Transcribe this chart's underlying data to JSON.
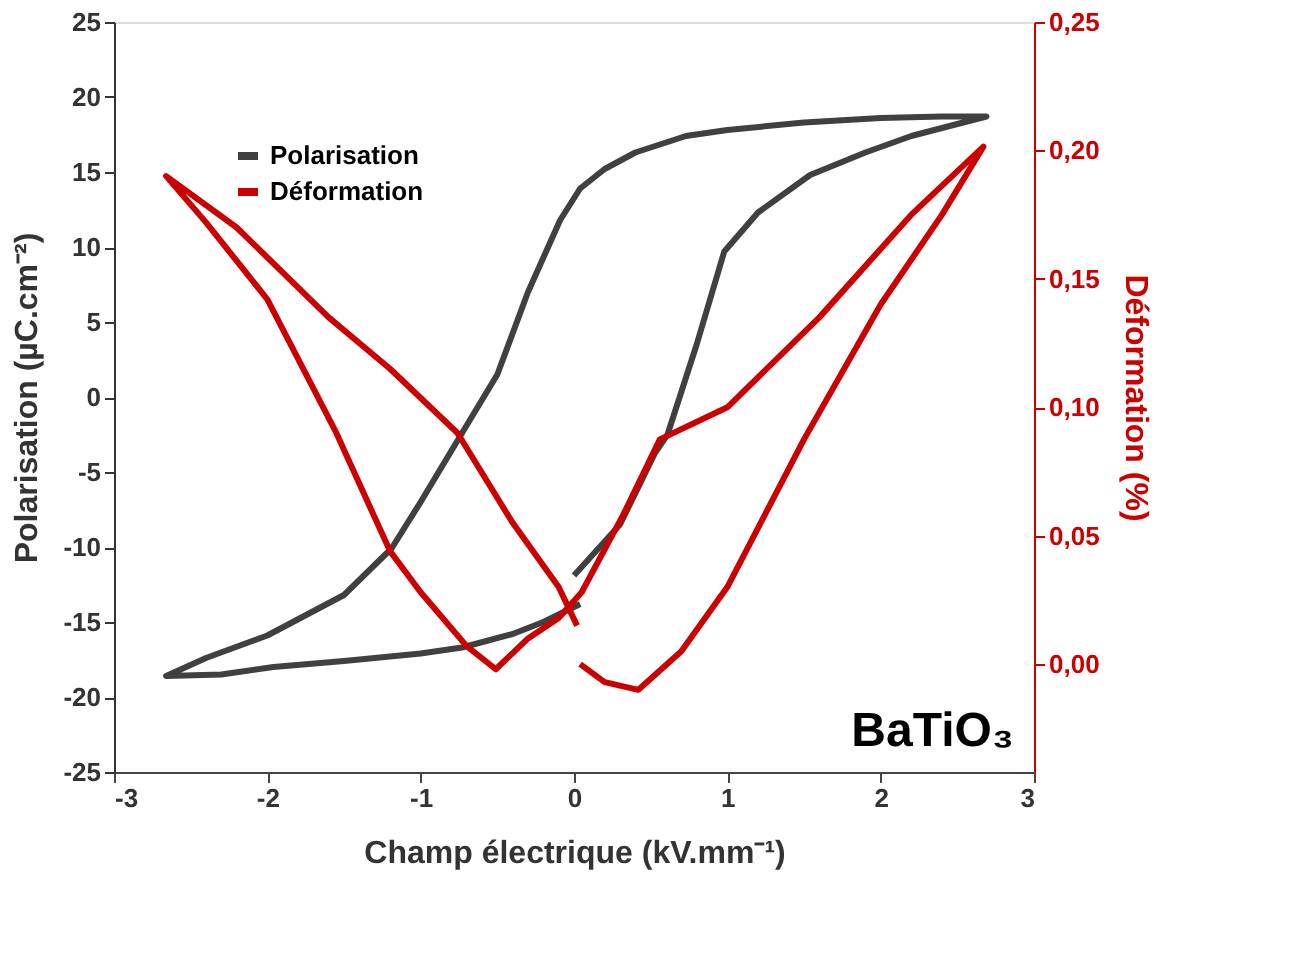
{
  "chart_data": {
    "type": "line",
    "xlabel": "Champ électrique (kV.mm⁻¹)",
    "ylabel": "Polarisation (µC.cm⁻²)",
    "y2label": "Déformation (%)",
    "xlim": [
      -3,
      3
    ],
    "xticks": [
      -3,
      -2,
      -1,
      0,
      1,
      2,
      3
    ],
    "ylim": [
      -25,
      25
    ],
    "yticks": [
      -25,
      -20,
      -15,
      -10,
      -5,
      0,
      5,
      10,
      15,
      20,
      25
    ],
    "y2lim": [
      -0.042,
      0.25
    ],
    "y2ticks": [
      {
        "value": 0,
        "label": "0,00"
      },
      {
        "value": 0.05,
        "label": "0,05"
      },
      {
        "value": 0.1,
        "label": "0,10"
      },
      {
        "value": 0.15,
        "label": "0,15"
      },
      {
        "value": 0.2,
        "label": "0,20"
      },
      {
        "value": 0.25,
        "label": "0,25"
      }
    ],
    "grid": false,
    "legend": "top left",
    "marker": "none",
    "line_style": "solid",
    "annotations": [
      "BaTiO₃"
    ],
    "series": [
      {
        "name": "Polarisation",
        "color": "#404040",
        "x": [
          0,
          0.3,
          0.53,
          0.61,
          0.8,
          0.98,
          1.2,
          1.54,
          1.9,
          2.2,
          2.5,
          2.69,
          2.4,
          2.0,
          1.5,
          1.0,
          0.73,
          0.4,
          0.2,
          0.04,
          -0.09,
          -0.3,
          -0.5,
          -0.73,
          -1.0,
          -1.19,
          -1.5,
          -2.0,
          -2.4,
          -2.66,
          -2.3,
          -1.96,
          -1.5,
          -1.0,
          -0.73,
          -0.4,
          -0.2,
          0.04
        ],
        "values": [
          -11.9,
          -8.5,
          -3.7,
          -2.5,
          3.5,
          9.7,
          12.3,
          14.8,
          16.3,
          17.4,
          18.2,
          18.7,
          18.7,
          18.6,
          18.3,
          17.8,
          17.4,
          16.3,
          15.2,
          13.9,
          11.8,
          7,
          1.5,
          -2.4,
          -7,
          -10.1,
          -13.2,
          -15.9,
          -17.4,
          -18.6,
          -18.5,
          -18,
          -17.6,
          -17.1,
          -16.7,
          -15.8,
          -15,
          -13.8
        ]
      },
      {
        "name": "Déformation",
        "color": "#cc0000",
        "axis": "y2",
        "x": [
          0.04,
          0.2,
          0.42,
          0.7,
          1.0,
          1.5,
          2.0,
          2.4,
          2.67,
          2.2,
          1.6,
          1.0,
          0.56,
          0.32,
          0.05,
          -0.1,
          -0.3,
          -0.51,
          -0.7,
          -1.0,
          -1.2,
          -1.55,
          -2.0,
          -2.4,
          -2.66,
          -2.2,
          -1.6,
          -1.2,
          -0.76,
          -0.4,
          -0.1,
          0.02
        ],
        "values": [
          0,
          -0.007,
          -0.01,
          0.005,
          0.03,
          0.0875,
          0.14,
          0.175,
          0.2015,
          0.175,
          0.135,
          0.1,
          0.0875,
          0.058,
          0.028,
          0.018,
          0.01,
          -0.002,
          0.007,
          0.028,
          0.044,
          0.09,
          0.142,
          0.172,
          0.19,
          0.17,
          0.135,
          0.115,
          0.09,
          0.055,
          0.03,
          0.015
        ]
      }
    ]
  }
}
